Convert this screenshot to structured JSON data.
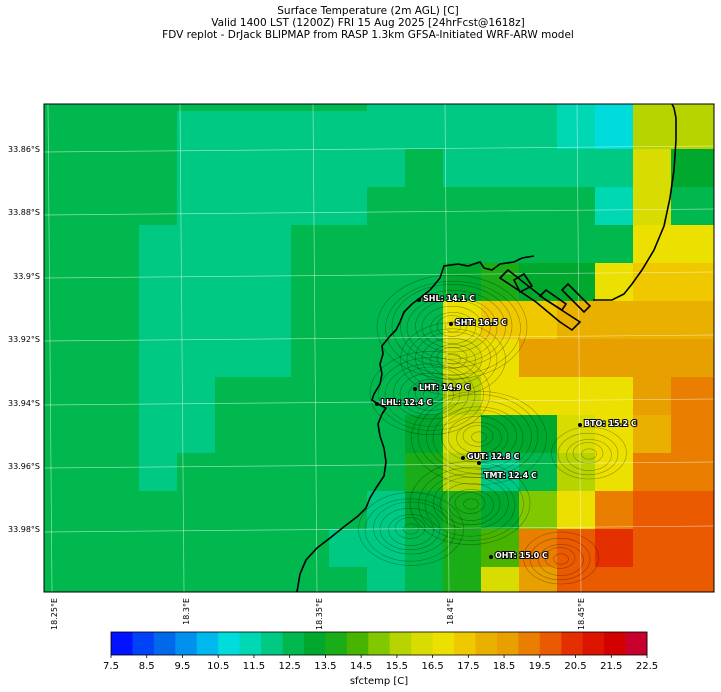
{
  "title": {
    "line1": "Surface Temperature (2m AGL) [C]",
    "line2": "Valid 1400 LST (1200Z) FRI 15 Aug 2025 [24hrFcst@1618z]",
    "line3": "FDV replot - DrJack BLIPMAP from RASP 1.3km GFSA-Initiated WRF-ARW model"
  },
  "lat_labels": [
    "33.86°S",
    "33.88°S",
    "33.9°S",
    "33.92°S",
    "33.94°S",
    "33.96°S",
    "33.98°S"
  ],
  "lon_labels": [
    "18.25°E",
    "18.3°E",
    "18.35°E",
    "18.4°E",
    "18.45°E"
  ],
  "stations": [
    {
      "code": "SHL",
      "label": "SHL: 14.1 C"
    },
    {
      "code": "SHT",
      "label": "SHT: 16.5 C"
    },
    {
      "code": "LHT",
      "label": "LHT: 14.9 C"
    },
    {
      "code": "LHL",
      "label": "LHL: 12.4 C"
    },
    {
      "code": "BTO",
      "label": "BTO: 15.2 C"
    },
    {
      "code": "GUT",
      "label": "GUT: 12.8 C"
    },
    {
      "code": "TMT",
      "label": "TMT: 12.4 C"
    },
    {
      "code": "OHT",
      "label": "OHT: 15.0 C"
    }
  ],
  "colorbar": {
    "label": "sfctemp [C]",
    "ticks": [
      "7.5",
      "8.5",
      "9.5",
      "10.5",
      "11.5",
      "12.5",
      "13.5",
      "14.5",
      "15.5",
      "16.5",
      "17.5",
      "18.5",
      "19.5",
      "20.5",
      "21.5",
      "22.5"
    ],
    "colors": [
      "#0012ff",
      "#0042f5",
      "#0068ea",
      "#0090ee",
      "#00b8ee",
      "#00dcdc",
      "#00d8b4",
      "#00c984",
      "#00b84e",
      "#00a82e",
      "#1aad18",
      "#48b400",
      "#82c800",
      "#b8d400",
      "#d8dc00",
      "#ece000",
      "#f0c800",
      "#eab000",
      "#e8a000",
      "#ea7e00",
      "#ea5a00",
      "#e43000",
      "#dc1400",
      "#d40000",
      "#c8002c"
    ]
  }
}
